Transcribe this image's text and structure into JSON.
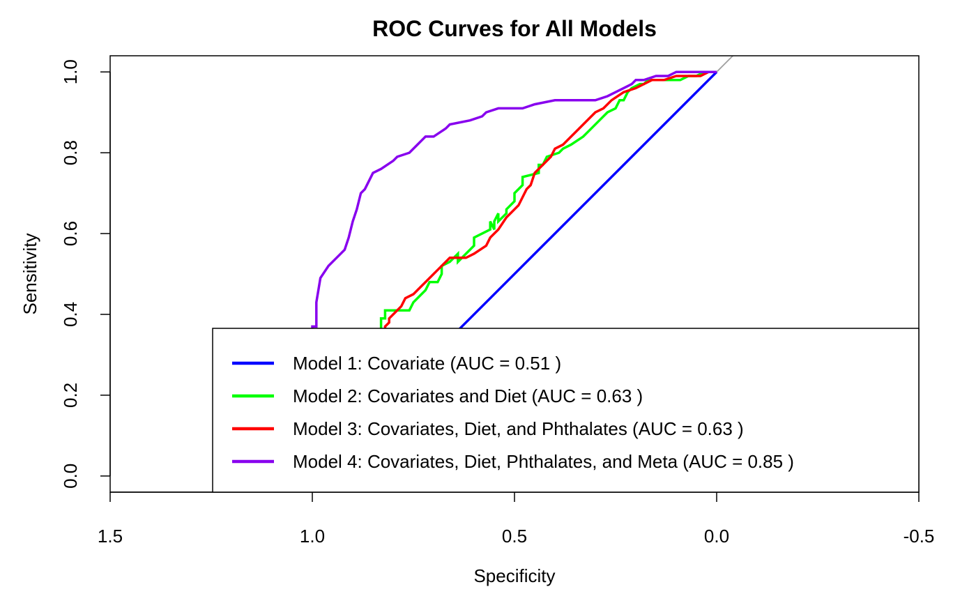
{
  "chart_data": {
    "type": "line",
    "title": "ROC Curves for All Models",
    "xlabel": "Specificity",
    "ylabel": "Sensitivity",
    "xlim": [
      1.5,
      -0.5
    ],
    "ylim": [
      -0.04,
      1.04
    ],
    "x_reversed": true,
    "xticks": [
      1.5,
      1.0,
      0.5,
      0.0,
      -0.5
    ],
    "xtick_labels": [
      "1.5",
      "1.0",
      "0.5",
      "0.0",
      "-0.5"
    ],
    "yticks": [
      0.0,
      0.2,
      0.4,
      0.6,
      0.8,
      1.0
    ],
    "ytick_labels": [
      "0.0",
      "0.2",
      "0.4",
      "0.6",
      "0.8",
      "1.0"
    ],
    "legend_position": "bottom-right",
    "grid": false,
    "reference_line": {
      "x": [
        1.0,
        0.0
      ],
      "y": [
        0.0,
        1.0
      ],
      "color": "#a0a0a0"
    },
    "series": [
      {
        "name": "Model 1: Covariate (AUC = 0.51 )",
        "color": "#0000ff",
        "x": [
          1.0,
          0.0
        ],
        "y": [
          0.0,
          1.0
        ]
      },
      {
        "name": "Model 2: Covariates and Diet (AUC = 0.63 )",
        "color": "#00ff00",
        "x": [
          1.0,
          1.0,
          0.83,
          0.83,
          0.82,
          0.82,
          0.76,
          0.75,
          0.73,
          0.72,
          0.71,
          0.69,
          0.68,
          0.68,
          0.66,
          0.64,
          0.64,
          0.62,
          0.6,
          0.6,
          0.56,
          0.56,
          0.55,
          0.55,
          0.54,
          0.54,
          0.52,
          0.52,
          0.5,
          0.5,
          0.48,
          0.48,
          0.44,
          0.44,
          0.43,
          0.42,
          0.39,
          0.38,
          0.36,
          0.33,
          0.31,
          0.29,
          0.27,
          0.25,
          0.24,
          0.23,
          0.22,
          0.21,
          0.19,
          0.18,
          0.17,
          0.16,
          0.14,
          0.12,
          0.09,
          0.07,
          0.05,
          0.03,
          0.0
        ],
        "y": [
          0.0,
          0.36,
          0.36,
          0.39,
          0.39,
          0.41,
          0.41,
          0.43,
          0.45,
          0.46,
          0.48,
          0.48,
          0.5,
          0.52,
          0.53,
          0.55,
          0.53,
          0.55,
          0.57,
          0.59,
          0.61,
          0.63,
          0.61,
          0.63,
          0.65,
          0.63,
          0.65,
          0.66,
          0.68,
          0.7,
          0.72,
          0.74,
          0.75,
          0.77,
          0.77,
          0.79,
          0.8,
          0.81,
          0.82,
          0.84,
          0.86,
          0.88,
          0.9,
          0.91,
          0.93,
          0.93,
          0.95,
          0.96,
          0.97,
          0.97,
          0.98,
          0.98,
          0.98,
          0.98,
          0.98,
          0.99,
          0.99,
          1.0,
          1.0
        ]
      },
      {
        "name": "Model 3: Covariates, Diet, and Phthalates (AUC = 0.63 )",
        "color": "#ff0000",
        "x": [
          1.0,
          1.0,
          0.82,
          0.82,
          0.81,
          0.81,
          0.8,
          0.78,
          0.77,
          0.75,
          0.73,
          0.72,
          0.7,
          0.69,
          0.67,
          0.66,
          0.64,
          0.62,
          0.6,
          0.57,
          0.56,
          0.54,
          0.52,
          0.51,
          0.5,
          0.49,
          0.48,
          0.47,
          0.46,
          0.45,
          0.43,
          0.41,
          0.4,
          0.38,
          0.36,
          0.35,
          0.33,
          0.31,
          0.3,
          0.28,
          0.26,
          0.23,
          0.2,
          0.18,
          0.16,
          0.13,
          0.1,
          0.07,
          0.04,
          0.02,
          0.0
        ],
        "y": [
          0.0,
          0.36,
          0.36,
          0.37,
          0.38,
          0.39,
          0.4,
          0.42,
          0.44,
          0.45,
          0.47,
          0.48,
          0.5,
          0.51,
          0.53,
          0.54,
          0.54,
          0.54,
          0.55,
          0.57,
          0.59,
          0.61,
          0.64,
          0.65,
          0.66,
          0.67,
          0.69,
          0.71,
          0.72,
          0.75,
          0.77,
          0.79,
          0.81,
          0.82,
          0.84,
          0.85,
          0.87,
          0.89,
          0.9,
          0.91,
          0.93,
          0.95,
          0.96,
          0.97,
          0.98,
          0.98,
          0.99,
          0.99,
          0.99,
          1.0,
          1.0
        ]
      },
      {
        "name": "Model 4: Covariates, Diet, Phthalates, and Meta (AUC = 0.85 )",
        "color": "#8800ee",
        "x": [
          1.0,
          1.0,
          0.99,
          0.99,
          0.98,
          0.96,
          0.94,
          0.92,
          0.91,
          0.9,
          0.89,
          0.88,
          0.87,
          0.86,
          0.85,
          0.83,
          0.8,
          0.79,
          0.76,
          0.74,
          0.73,
          0.72,
          0.7,
          0.67,
          0.66,
          0.61,
          0.58,
          0.57,
          0.54,
          0.51,
          0.48,
          0.45,
          0.4,
          0.35,
          0.3,
          0.27,
          0.25,
          0.23,
          0.21,
          0.2,
          0.18,
          0.15,
          0.12,
          0.1,
          0.08,
          0.05,
          0.02,
          0.0
        ],
        "y": [
          0.0,
          0.37,
          0.37,
          0.43,
          0.49,
          0.52,
          0.54,
          0.56,
          0.59,
          0.63,
          0.66,
          0.7,
          0.71,
          0.73,
          0.75,
          0.76,
          0.78,
          0.79,
          0.8,
          0.82,
          0.83,
          0.84,
          0.84,
          0.86,
          0.87,
          0.88,
          0.89,
          0.9,
          0.91,
          0.91,
          0.91,
          0.92,
          0.93,
          0.93,
          0.93,
          0.94,
          0.95,
          0.96,
          0.97,
          0.98,
          0.98,
          0.99,
          0.99,
          1.0,
          1.0,
          1.0,
          1.0,
          1.0
        ]
      }
    ]
  }
}
